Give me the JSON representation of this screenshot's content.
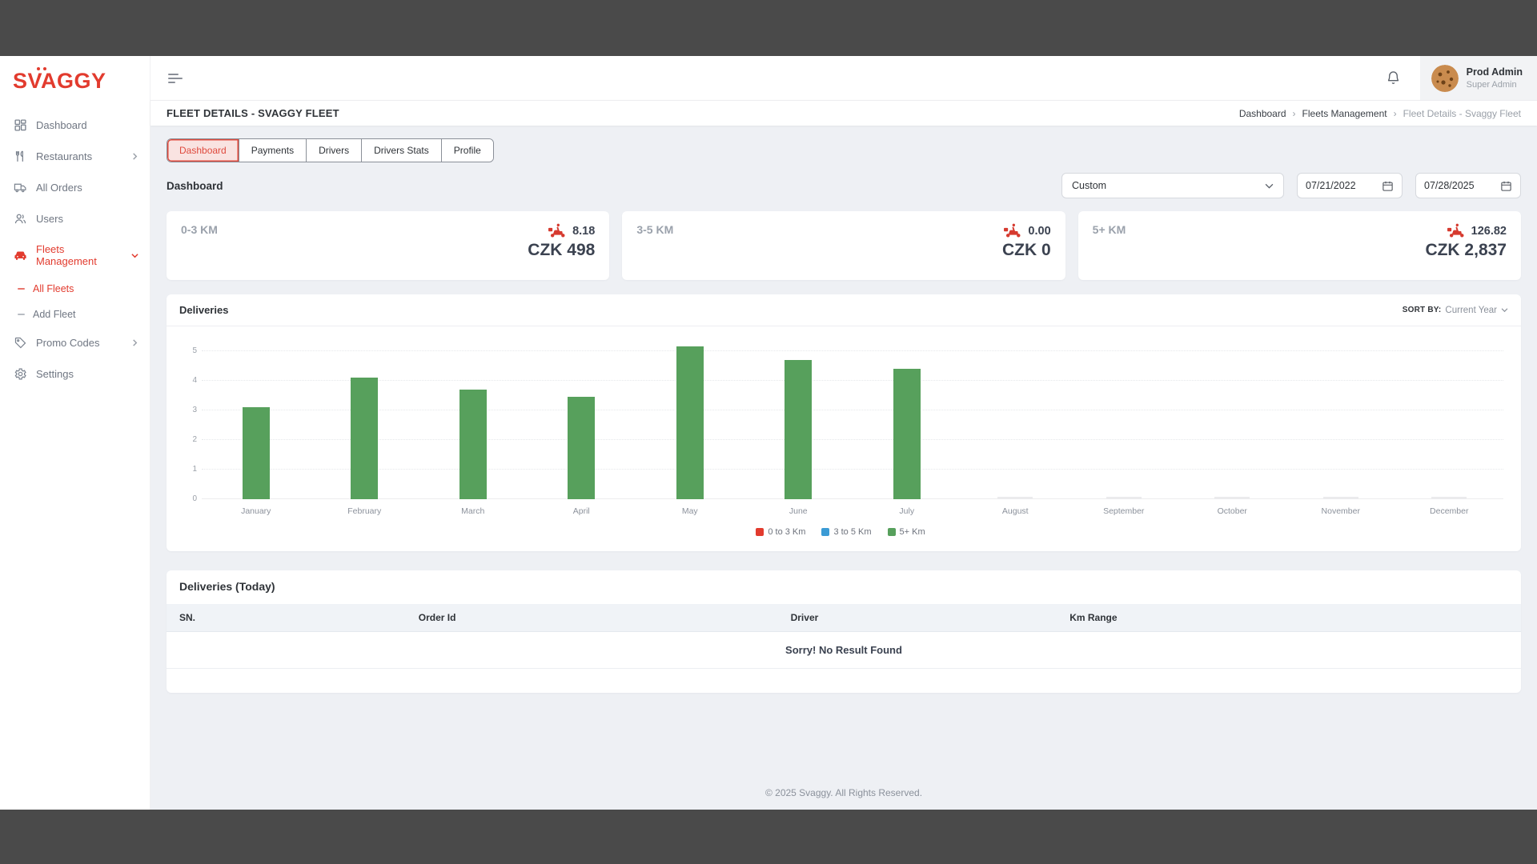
{
  "colors": {
    "accent_red": "#e23b2e",
    "bar_green": "#57a05c",
    "legend_blue": "#3b9bd5",
    "chrome_band": "#4a4a4a",
    "content_bg": "#eef0f4"
  },
  "sidebar": {
    "logo": "SVAGGY",
    "items": [
      {
        "label": "Dashboard",
        "icon": "dashboard-icon"
      },
      {
        "label": "Restaurants",
        "icon": "restaurants-icon"
      },
      {
        "label": "All Orders",
        "icon": "orders-truck-icon"
      },
      {
        "label": "Users",
        "icon": "users-icon"
      },
      {
        "label": "Fleets Management",
        "icon": "fleet-car-icon",
        "active": true,
        "expanded": true
      },
      {
        "label": "All Fleets",
        "sub": true,
        "active": true
      },
      {
        "label": "Add Fleet",
        "sub": true
      },
      {
        "label": "Promo Codes",
        "icon": "promo-tag-icon"
      },
      {
        "label": "Settings",
        "icon": "gear-icon"
      }
    ]
  },
  "topbar": {
    "user_name": "Prod Admin",
    "user_role": "Super Admin"
  },
  "page": {
    "title": "FLEET DETAILS - SVAGGY FLEET",
    "breadcrumb": [
      "Dashboard",
      "Fleets Management",
      "Fleet Details - Svaggy Fleet"
    ],
    "breadcrumb_separator": "›",
    "section_label": "Dashboard"
  },
  "tabs": [
    {
      "label": "Dashboard",
      "active": true
    },
    {
      "label": "Payments"
    },
    {
      "label": "Drivers"
    },
    {
      "label": "Drivers Stats"
    },
    {
      "label": "Profile"
    }
  ],
  "filters": {
    "range_select_value": "Custom",
    "date_from": "07/21/2022",
    "date_to": "07/28/2025"
  },
  "stat_cards": [
    {
      "label": "0-3 KM",
      "distance": "8.18",
      "amount": "CZK 498"
    },
    {
      "label": "3-5 KM",
      "distance": "0.00",
      "amount": "CZK 0"
    },
    {
      "label": "5+ KM",
      "distance": "126.82",
      "amount": "CZK 2,837"
    }
  ],
  "deliveries_panel": {
    "title": "Deliveries",
    "sort_by_label": "SORT BY:",
    "sort_by_value": "Current Year"
  },
  "chart_data": {
    "type": "bar",
    "title": "Deliveries",
    "categories": [
      "January",
      "February",
      "March",
      "April",
      "May",
      "June",
      "July",
      "August",
      "September",
      "October",
      "November",
      "December"
    ],
    "series": [
      {
        "name": "0 to 3 Km",
        "color": "#e23b2e",
        "values": [
          0,
          0,
          0,
          0,
          0,
          0,
          0,
          0,
          0,
          0,
          0,
          0
        ]
      },
      {
        "name": "3 to 5 Km",
        "color": "#3b9bd5",
        "values": [
          0,
          0,
          0,
          0,
          0,
          0,
          0,
          0,
          0,
          0,
          0,
          0
        ]
      },
      {
        "name": "5+ Km",
        "color": "#57a05c",
        "values": [
          3.1,
          4.1,
          3.7,
          3.45,
          5.15,
          4.7,
          4.4,
          0,
          0,
          0,
          0,
          0
        ]
      }
    ],
    "xlabel": "",
    "ylabel": "",
    "ylim": [
      0,
      5
    ],
    "yticks": [
      0,
      1,
      2,
      3,
      4,
      5
    ],
    "grid": true,
    "legend_position": "bottom"
  },
  "deliveries_table": {
    "title": "Deliveries (Today)",
    "headers": [
      "SN.",
      "Order Id",
      "Driver",
      "Km Range"
    ],
    "empty_message": "Sorry! No Result Found",
    "rows": []
  },
  "footer": {
    "copyright": "© 2025 Svaggy. All Rights Reserved."
  }
}
